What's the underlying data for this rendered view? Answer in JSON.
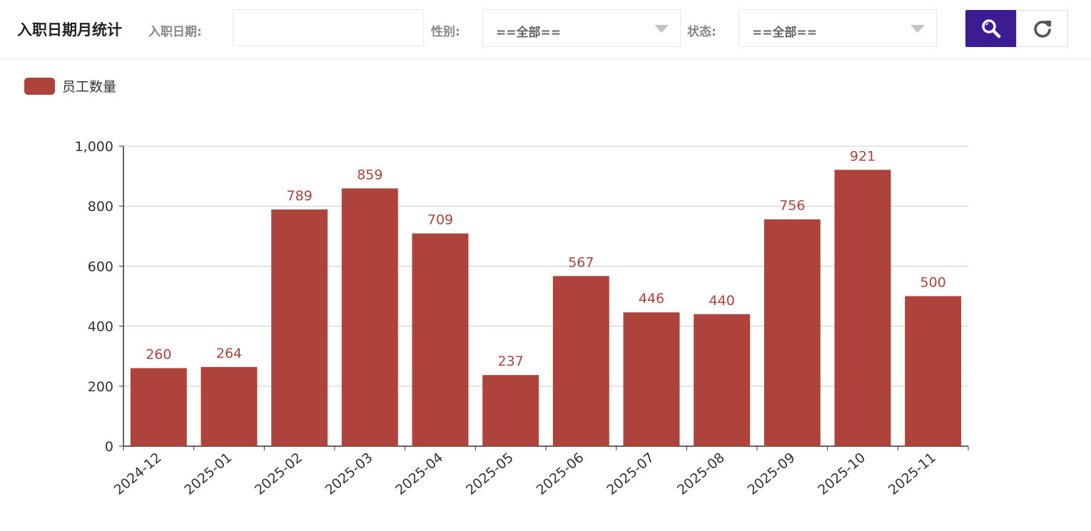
{
  "toolbar": {
    "title": "入职日期月统计",
    "date_label": "入职日期:",
    "date_value": "",
    "gender_label": "性别:",
    "gender_value": "==全部==",
    "status_label": "状态:",
    "status_value": "==全部==",
    "search_icon": "search-icon",
    "refresh_icon": "refresh-icon"
  },
  "colors": {
    "bar": "#ad433a",
    "search_button": "#3d1c93",
    "axis": "#333333",
    "grid": "#cccccc"
  },
  "chart_data": {
    "type": "bar",
    "categories": [
      "2024-12",
      "2025-01",
      "2025-02",
      "2025-03",
      "2025-04",
      "2025-05",
      "2025-06",
      "2025-07",
      "2025-08",
      "2025-09",
      "2025-10",
      "2025-11"
    ],
    "series": [
      {
        "name": "员工数量",
        "values": [
          260,
          264,
          789,
          859,
          709,
          237,
          567,
          446,
          440,
          756,
          921,
          500
        ]
      }
    ],
    "yticks": [
      "0",
      "200",
      "400",
      "600",
      "800",
      "1,000"
    ],
    "ylim": [
      0,
      1000
    ],
    "grid": true,
    "legend_position": "top-left",
    "data_labels": true,
    "xtick_rotation": -40
  }
}
